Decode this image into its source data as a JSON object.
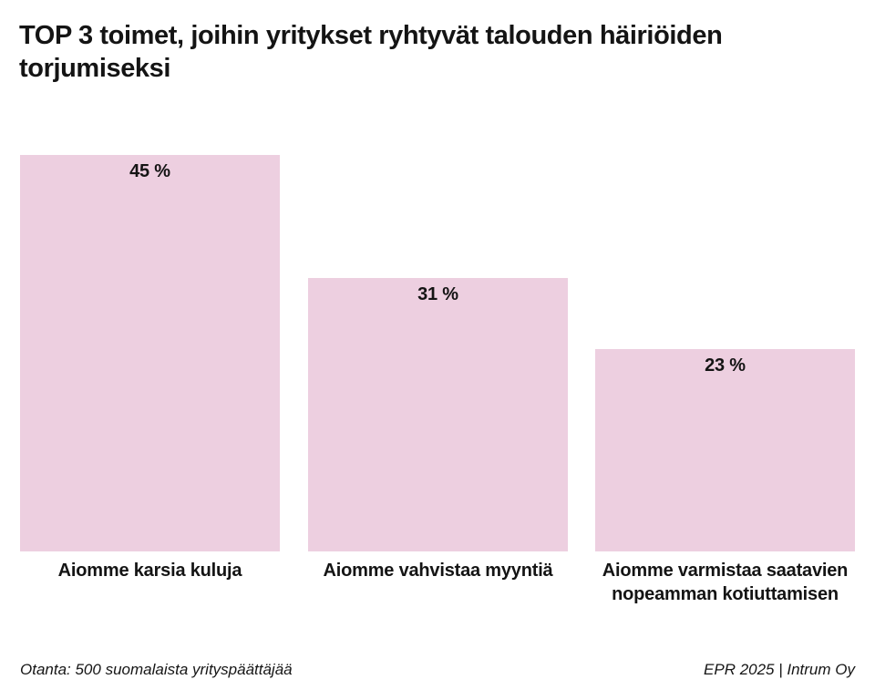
{
  "title": "TOP 3 toimet, joihin yritykset ryhtyvät talouden häiriöiden torjumiseksi",
  "chart_data": {
    "type": "bar",
    "title": "TOP 3 toimet, joihin yritykset ryhtyvät talouden häiriöiden torjumiseksi",
    "categories": [
      "Aiomme karsia kuluja",
      "Aiomme vahvistaa myyntiä",
      "Aiomme varmistaa saatavien nopeamman kotiuttamisen"
    ],
    "values": [
      45,
      31,
      23
    ],
    "value_labels": [
      "45 %",
      "31 %",
      "23 %"
    ],
    "unit": "%",
    "xlabel": "",
    "ylabel": "",
    "ylim": [
      0,
      45
    ],
    "grid": false,
    "legend": false,
    "bar_color": "#edcfe0",
    "label_color": "#141414"
  },
  "footer": {
    "left": "Otanta: 500 suomalaista yrityspäättäjää",
    "right": "EPR 2025 | Intrum Oy"
  },
  "colors": {
    "background": "#ffffff",
    "bar": "#edcfe0",
    "text": "#141414"
  }
}
